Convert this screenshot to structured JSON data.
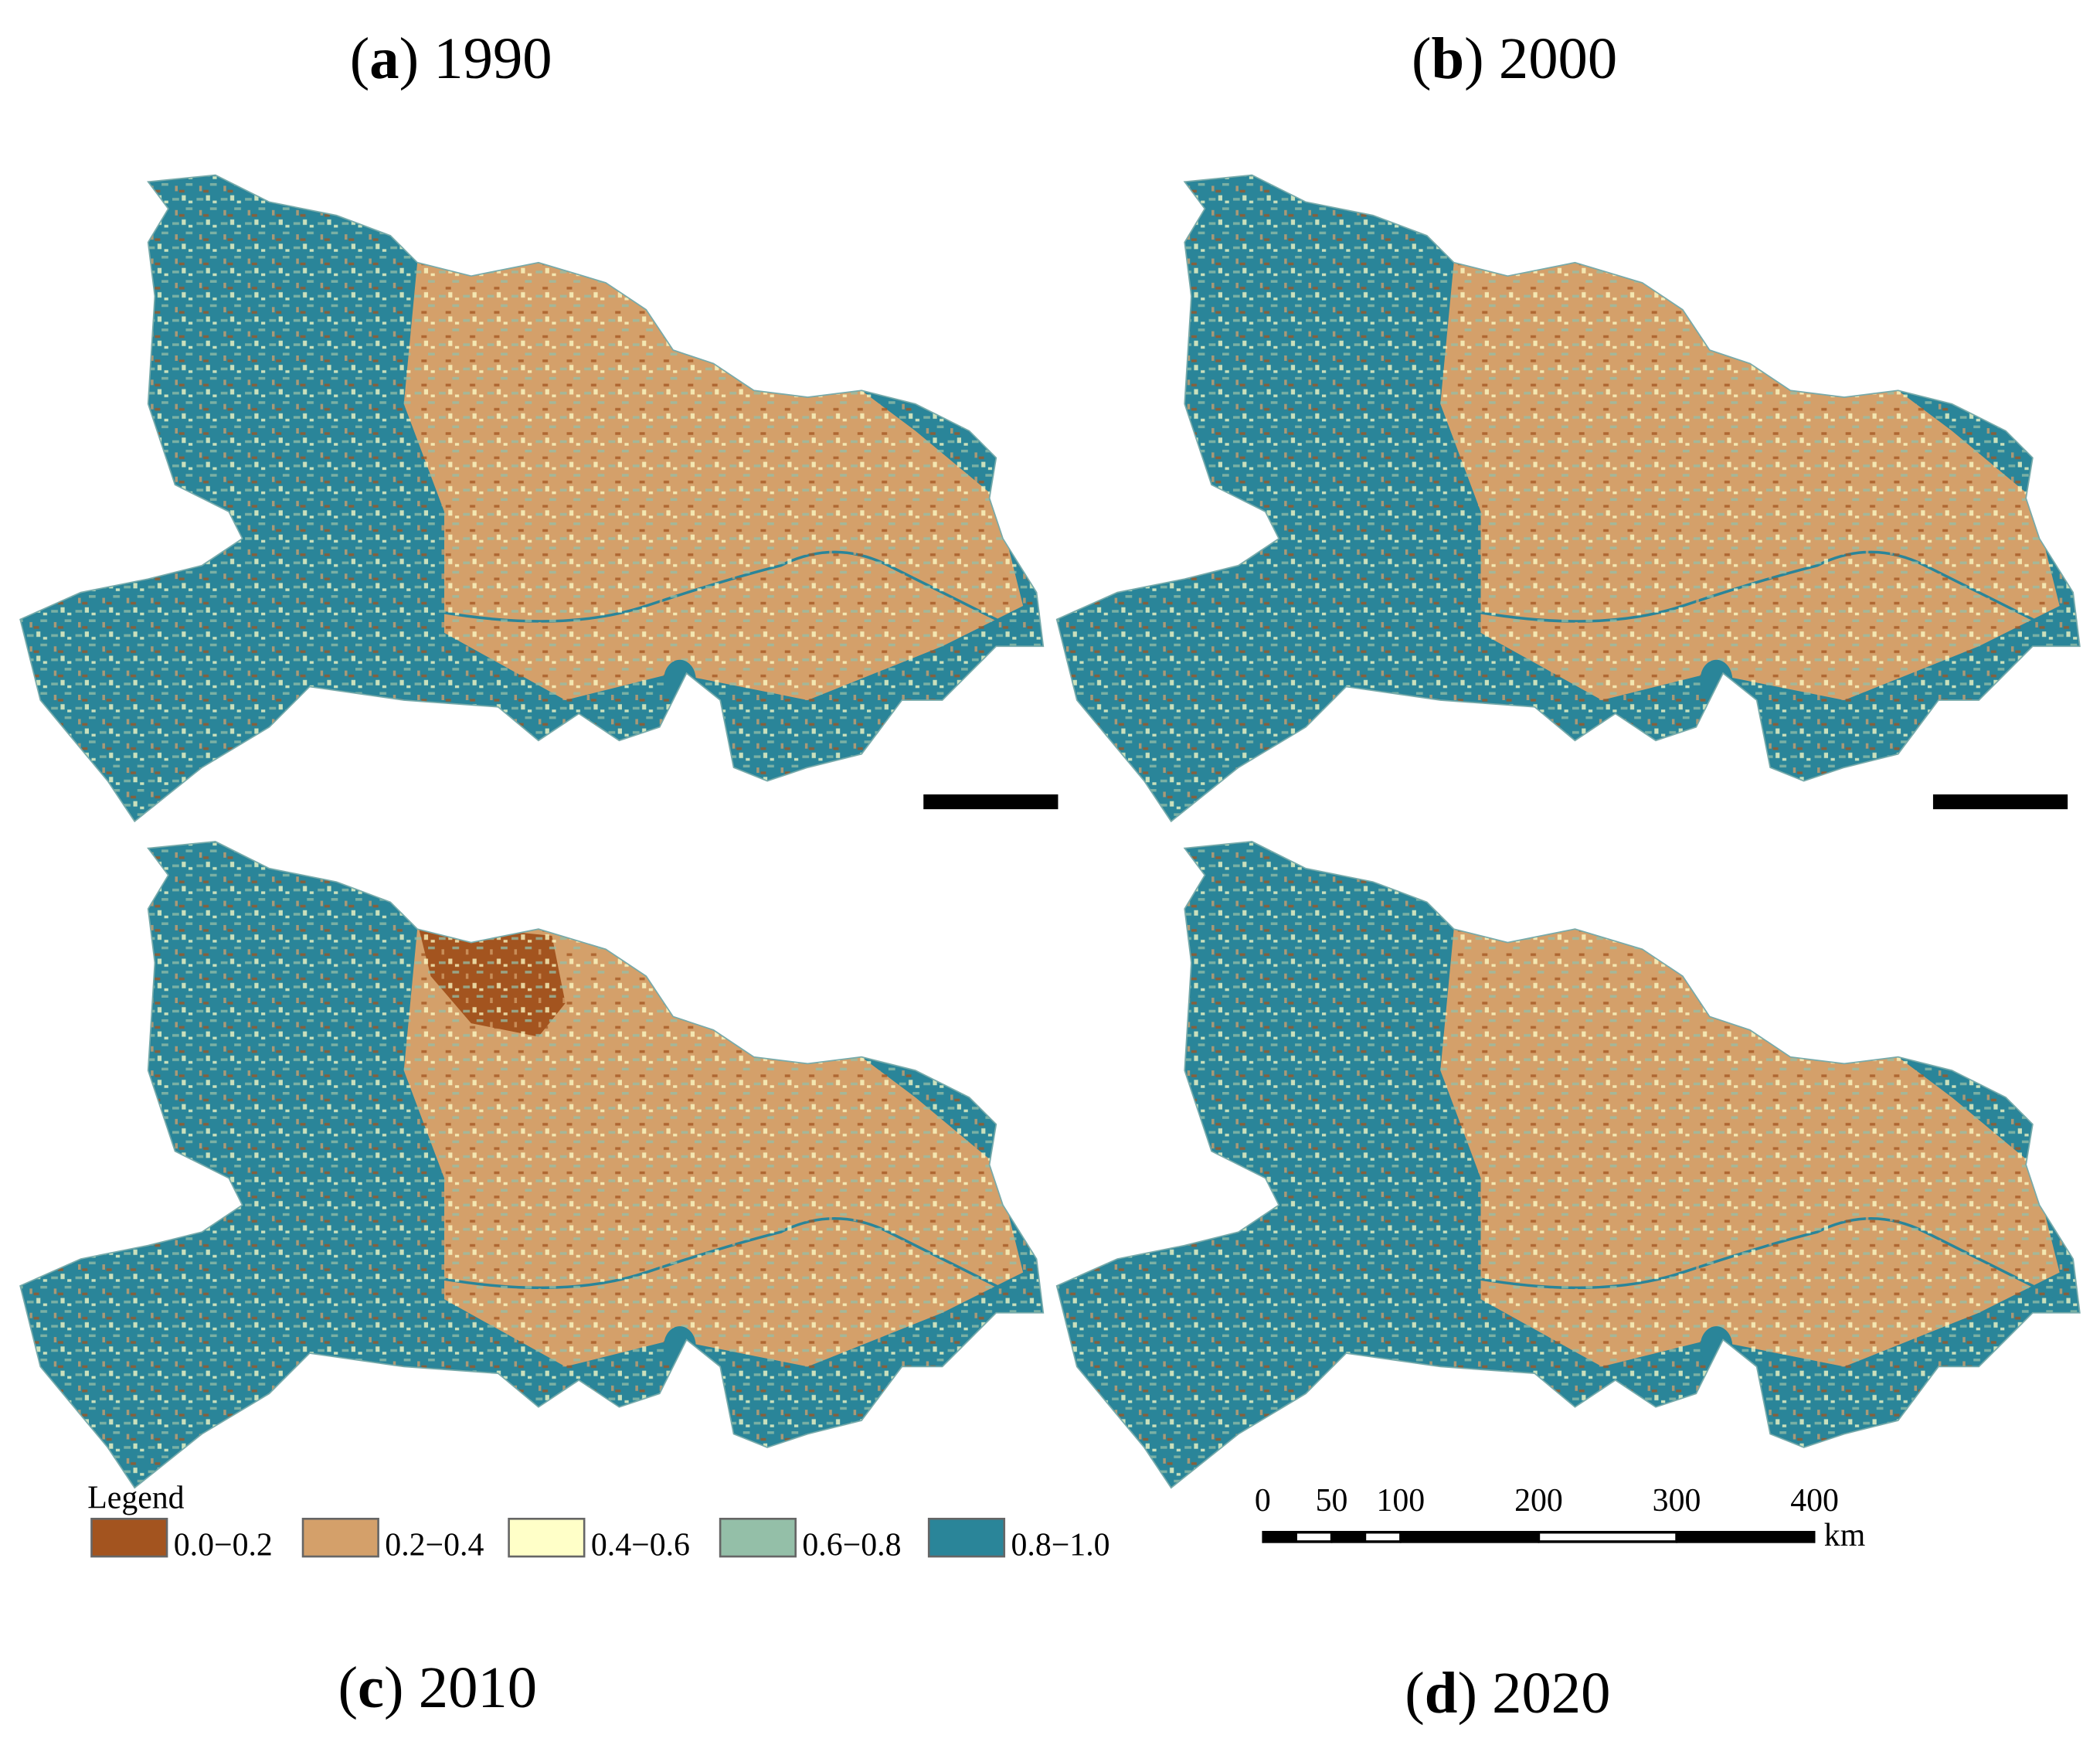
{
  "panels": [
    {
      "letter": "a",
      "year": "1990"
    },
    {
      "letter": "b",
      "year": "2000"
    },
    {
      "letter": "c",
      "year": "2010"
    },
    {
      "letter": "d",
      "year": "2020"
    }
  ],
  "legend": {
    "title": "Legend",
    "items": [
      {
        "label": "0.0−0.2",
        "color": "#a3541f"
      },
      {
        "label": "0.2−0.4",
        "color": "#d4a06a"
      },
      {
        "label": "0.4−0.6",
        "color": "#ffffc8"
      },
      {
        "label": "0.6−0.8",
        "color": "#94bfa8"
      },
      {
        "label": "0.8−1.0",
        "color": "#2a8599"
      }
    ]
  },
  "scale_bar": {
    "ticks": [
      0,
      50,
      100,
      200,
      300,
      400
    ],
    "unit": "km"
  }
}
